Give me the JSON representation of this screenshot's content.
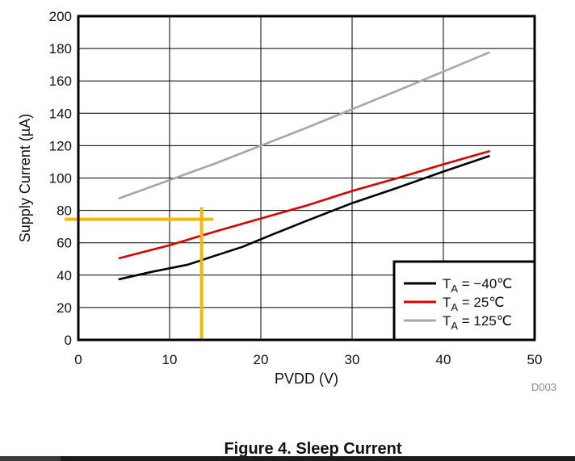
{
  "chart_data": {
    "type": "line",
    "title": "",
    "xlabel": "PVDD (V)",
    "ylabel": "Supply Current (µA)",
    "xlim": [
      0,
      50
    ],
    "ylim": [
      0,
      200
    ],
    "xticks": [
      "0",
      "10",
      "20",
      "30",
      "40",
      "50"
    ],
    "yticks": [
      "0",
      "20",
      "40",
      "60",
      "80",
      "100",
      "120",
      "140",
      "160",
      "180",
      "200"
    ],
    "grid": true,
    "legend_position": "bottom-right",
    "series": [
      {
        "name": "TA = −40℃",
        "legend_main": "T",
        "legend_sub": "A",
        "legend_rest": " = −40℃",
        "color": "#000000",
        "points": [
          [
            4.5,
            37.5
          ],
          [
            8,
            42
          ],
          [
            12,
            46.5
          ],
          [
            15,
            52
          ],
          [
            18,
            57.5
          ],
          [
            21,
            64.5
          ],
          [
            25,
            73.5
          ],
          [
            30,
            84.5
          ],
          [
            35,
            94
          ],
          [
            40,
            104
          ],
          [
            45,
            113.5
          ]
        ]
      },
      {
        "name": "TA = 25℃",
        "legend_main": "T",
        "legend_sub": "A",
        "legend_rest": " = 25℃",
        "color": "#e00000",
        "points": [
          [
            4.5,
            50.5
          ],
          [
            10,
            58.5
          ],
          [
            15,
            67
          ],
          [
            20,
            75
          ],
          [
            25,
            83
          ],
          [
            30,
            92
          ],
          [
            35,
            100
          ],
          [
            40,
            108.5
          ],
          [
            45,
            116.5
          ]
        ]
      },
      {
        "name": "TA = 125℃",
        "legend_main": "T",
        "legend_sub": "A",
        "legend_rest": " = 125℃",
        "color": "#a6a6a6",
        "points": [
          [
            4.5,
            87.5
          ],
          [
            15,
            109
          ],
          [
            25,
            131
          ],
          [
            35,
            154
          ],
          [
            45,
            177.5
          ]
        ]
      }
    ],
    "annotations": {
      "color": "#f5b800",
      "horizontal_marker": {
        "y": 74.5,
        "x_from": -1.5,
        "x_to": 14.8
      },
      "vertical_marker": {
        "x": 13.5,
        "y_from": 0,
        "y_to": 82
      }
    },
    "figure_code": "D003"
  },
  "caption": "Figure 4. Sleep Current"
}
